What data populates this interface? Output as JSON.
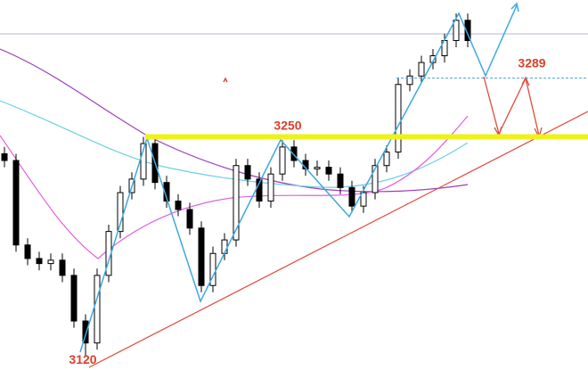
{
  "chart_data": {
    "type": "candlestick",
    "ylim": [
      3112,
      3331
    ],
    "up_color": "#ffffff",
    "down_color": "#000000",
    "edge_color": "#000000",
    "open": [
      3240,
      3236,
      3186,
      3178,
      3175,
      3177,
      3168,
      3141,
      3128,
      3168,
      3194,
      3217,
      3225,
      3246,
      3223,
      3212,
      3207,
      3196,
      3162,
      3181,
      3189,
      3233,
      3225,
      3212,
      3228,
      3244,
      3236,
      3231,
      3232,
      3228,
      3220,
      3209,
      3217,
      3233,
      3241,
      3281,
      3286,
      3294,
      3298,
      3307,
      3319
    ],
    "high": [
      3244,
      3240,
      3190,
      3182,
      3181,
      3181,
      3172,
      3145,
      3172,
      3198,
      3221,
      3229,
      3250,
      3250,
      3227,
      3216,
      3211,
      3200,
      3185,
      3193,
      3237,
      3237,
      3229,
      3232,
      3248,
      3248,
      3240,
      3236,
      3236,
      3232,
      3224,
      3221,
      3237,
      3245,
      3285,
      3290,
      3298,
      3302,
      3311,
      3323,
      3323
    ],
    "low": [
      3232,
      3182,
      3174,
      3171,
      3171,
      3164,
      3137,
      3120,
      3124,
      3164,
      3190,
      3213,
      3221,
      3219,
      3208,
      3203,
      3192,
      3158,
      3158,
      3177,
      3185,
      3221,
      3208,
      3208,
      3224,
      3232,
      3227,
      3227,
      3224,
      3216,
      3205,
      3205,
      3213,
      3229,
      3237,
      3277,
      3282,
      3290,
      3294,
      3303,
      3303
    ],
    "close": [
      3236,
      3186,
      3178,
      3175,
      3177,
      3168,
      3141,
      3128,
      3168,
      3194,
      3217,
      3225,
      3246,
      3223,
      3212,
      3207,
      3196,
      3162,
      3181,
      3189,
      3233,
      3225,
      3212,
      3228,
      3244,
      3236,
      3231,
      3232,
      3228,
      3220,
      3209,
      3217,
      3233,
      3241,
      3281,
      3286,
      3294,
      3298,
      3307,
      3319,
      3307
    ],
    "annotations": [
      3250,
      3289,
      3120
    ],
    "level_color": "#eef21a",
    "target_color": "#4aa0d8"
  }
}
